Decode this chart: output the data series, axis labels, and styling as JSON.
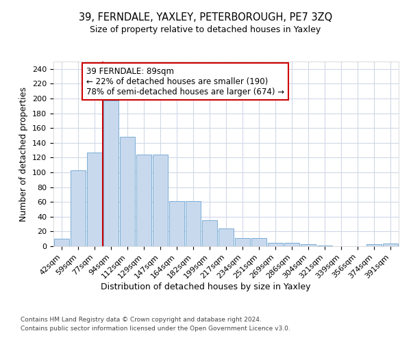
{
  "title1": "39, FERNDALE, YAXLEY, PETERBOROUGH, PE7 3ZQ",
  "title2": "Size of property relative to detached houses in Yaxley",
  "xlabel": "Distribution of detached houses by size in Yaxley",
  "ylabel": "Number of detached properties",
  "categories": [
    "42sqm",
    "59sqm",
    "77sqm",
    "94sqm",
    "112sqm",
    "129sqm",
    "147sqm",
    "164sqm",
    "182sqm",
    "199sqm",
    "217sqm",
    "234sqm",
    "251sqm",
    "269sqm",
    "286sqm",
    "304sqm",
    "321sqm",
    "339sqm",
    "356sqm",
    "374sqm",
    "391sqm"
  ],
  "bar_heights": [
    10,
    103,
    127,
    197,
    148,
    124,
    124,
    61,
    61,
    35,
    24,
    11,
    11,
    5,
    5,
    3,
    1,
    0,
    0,
    3,
    4
  ],
  "bar_color": "#c8d9ee",
  "bar_edge_color": "#7aadd4",
  "vline_color": "#cc0000",
  "vline_x": 3.0,
  "annotation_text": "39 FERNDALE: 89sqm\n← 22% of detached houses are smaller (190)\n78% of semi-detached houses are larger (674) →",
  "annotation_box_color": "#ffffff",
  "annotation_box_edge_color": "#cc0000",
  "ylim": [
    0,
    250
  ],
  "yticks": [
    0,
    20,
    40,
    60,
    80,
    100,
    120,
    140,
    160,
    180,
    200,
    220,
    240
  ],
  "footer1": "Contains HM Land Registry data © Crown copyright and database right 2024.",
  "footer2": "Contains public sector information licensed under the Open Government Licence v3.0.",
  "bg_color": "#ffffff",
  "plot_bg_color": "#ffffff",
  "grid_color": "#d0d8e8"
}
